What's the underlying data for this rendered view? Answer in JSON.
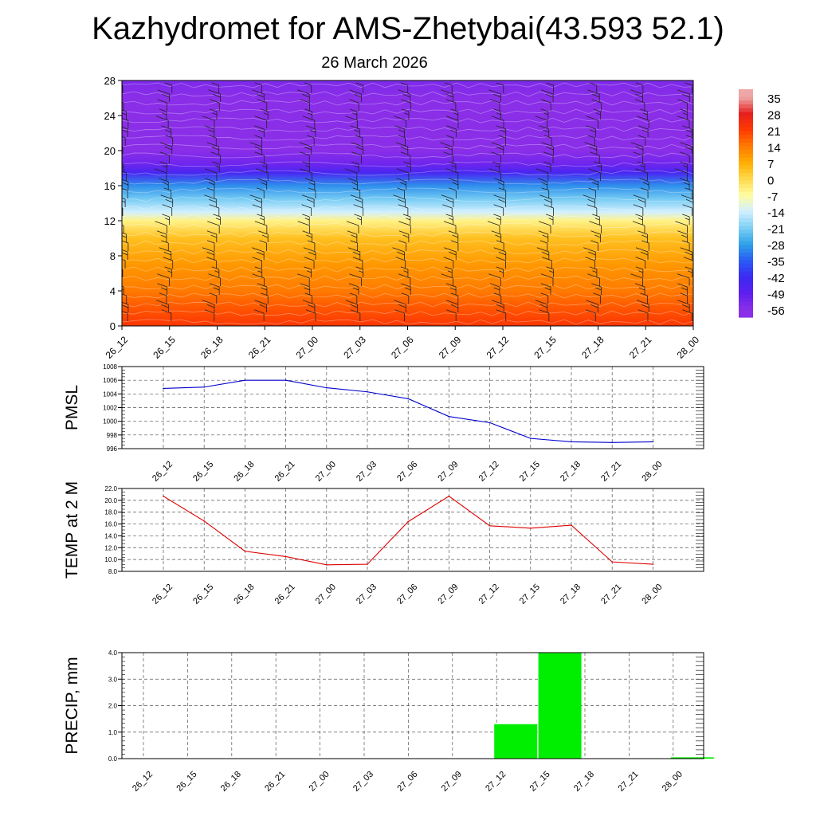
{
  "header": {
    "title": "Kazhydromet for AMS-Zhetybai(43.593 52.1)",
    "subtitle": "26 March 2026"
  },
  "time_labels": [
    "26_12",
    "26_15",
    "26_18",
    "26_21",
    "27_00",
    "27_03",
    "27_06",
    "27_09",
    "27_12",
    "27_15",
    "27_18",
    "27_21",
    "28_00"
  ],
  "colorbar": {
    "labels": [
      "35",
      "28",
      "21",
      "14",
      "7",
      "0",
      "-7",
      "-14",
      "-21",
      "-28",
      "-35",
      "-42",
      "-49",
      "-56"
    ],
    "values": [
      35,
      28,
      21,
      14,
      7,
      0,
      -7,
      -14,
      -21,
      -28,
      -35,
      -42,
      -49,
      -56
    ],
    "colors": [
      "#eea6a6",
      "#e52020",
      "#ff3a00",
      "#ff7a00",
      "#ffae00",
      "#ffd84a",
      "#fffda0",
      "#d2f0ff",
      "#7fd0f5",
      "#2fa3e8",
      "#2a5df5",
      "#3a2cf2",
      "#5d1ff0",
      "#8a2ee8"
    ]
  },
  "chart_data": [
    {
      "type": "heatmap",
      "title": "",
      "x": [
        "26_12",
        "26_15",
        "26_18",
        "26_21",
        "27_00",
        "27_03",
        "27_06",
        "27_09",
        "27_12",
        "27_15",
        "27_18",
        "27_21",
        "28_00"
      ],
      "yticks": [
        0,
        4,
        8,
        12,
        16,
        20,
        24,
        28
      ],
      "ylim": [
        0,
        28
      ],
      "color_range": [
        -56,
        35
      ],
      "profile": [
        {
          "level": 0,
          "value": 22
        },
        {
          "level": 2,
          "value": 18
        },
        {
          "level": 4,
          "value": 14
        },
        {
          "level": 7,
          "value": 10
        },
        {
          "level": 10,
          "value": 4
        },
        {
          "level": 12,
          "value": -5
        },
        {
          "level": 13,
          "value": -14
        },
        {
          "level": 14.5,
          "value": -22
        },
        {
          "level": 16,
          "value": -30
        },
        {
          "level": 17.5,
          "value": -45
        },
        {
          "level": 18.5,
          "value": -52
        },
        {
          "level": 20,
          "value": -62
        },
        {
          "level": 22,
          "value": -64
        },
        {
          "level": 24,
          "value": -58
        },
        {
          "level": 26,
          "value": -56
        },
        {
          "level": 28,
          "value": -54
        }
      ]
    },
    {
      "type": "line",
      "ylabel": "PMSL",
      "x": [
        "26_12",
        "26_15",
        "26_18",
        "26_21",
        "27_00",
        "27_03",
        "27_06",
        "27_09",
        "27_12",
        "27_15",
        "27_18",
        "27_21",
        "28_00"
      ],
      "values": [
        1004.8,
        1005.0,
        1006.0,
        1006.0,
        1004.9,
        1004.3,
        1003.3,
        1000.7,
        999.8,
        997.5,
        997.0,
        996.9,
        997.0
      ],
      "yticks": [
        "1008",
        "1006",
        "1004",
        "1002",
        "1000",
        "998",
        "996"
      ],
      "ylim": [
        996,
        1008
      ],
      "color": "#0000cc",
      "grid": true
    },
    {
      "type": "line",
      "ylabel": "TEMP at 2 M",
      "x": [
        "26_12",
        "26_15",
        "26_18",
        "26_21",
        "27_00",
        "27_03",
        "27_06",
        "27_09",
        "27_12",
        "27_15",
        "27_18",
        "27_21",
        "28_00"
      ],
      "values": [
        20.7,
        16.5,
        11.4,
        10.5,
        9.1,
        9.2,
        16.4,
        20.7,
        15.7,
        15.3,
        15.8,
        9.6,
        9.2
      ],
      "yticks": [
        "22.0",
        "20.0",
        "18.0",
        "16.0",
        "14.0",
        "12.0",
        "10.0",
        "8.0"
      ],
      "ylim": [
        8,
        22
      ],
      "color": "#dd0000",
      "grid": true
    },
    {
      "type": "bar",
      "ylabel": "PRECIP, mm",
      "categories": [
        "26_12",
        "26_15",
        "26_18",
        "26_21",
        "27_00",
        "27_03",
        "27_06",
        "27_09",
        "27_12",
        "27_15",
        "27_18",
        "27_21",
        "28_00"
      ],
      "values": [
        0,
        0,
        0,
        0,
        0,
        0,
        0,
        0,
        1.3,
        4.0,
        0,
        0,
        0.05
      ],
      "yticks": [
        "4.0",
        "3.0",
        "2.0",
        "1.0",
        "0.0"
      ],
      "ylim": [
        0,
        4
      ],
      "color": "#00ee00",
      "grid": true
    }
  ]
}
